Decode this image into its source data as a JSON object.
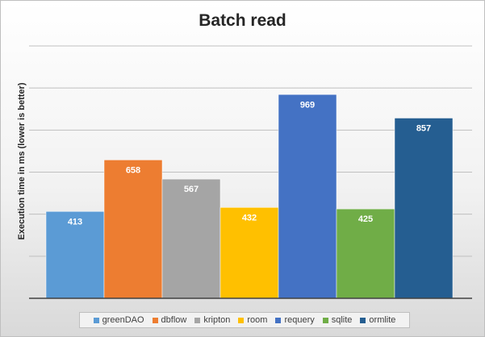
{
  "chart_data": {
    "type": "bar",
    "title": "Batch read",
    "ylabel": "Execution time in ms (lower is better)",
    "xlabel": "",
    "ylim": [
      0,
      1200
    ],
    "grid": true,
    "legend_position": "bottom",
    "series": [
      {
        "name": "greenDAO",
        "value": 413,
        "color": "#5b9bd5"
      },
      {
        "name": "dbflow",
        "value": 658,
        "color": "#ed7d31"
      },
      {
        "name": "kripton",
        "value": 567,
        "color": "#a5a5a5"
      },
      {
        "name": "room",
        "value": 432,
        "color": "#ffc000"
      },
      {
        "name": "requery",
        "value": 969,
        "color": "#4472c4"
      },
      {
        "name": "sqlite",
        "value": 425,
        "color": "#70ad47"
      },
      {
        "name": "ormlite",
        "value": 857,
        "color": "#255e91"
      }
    ]
  }
}
